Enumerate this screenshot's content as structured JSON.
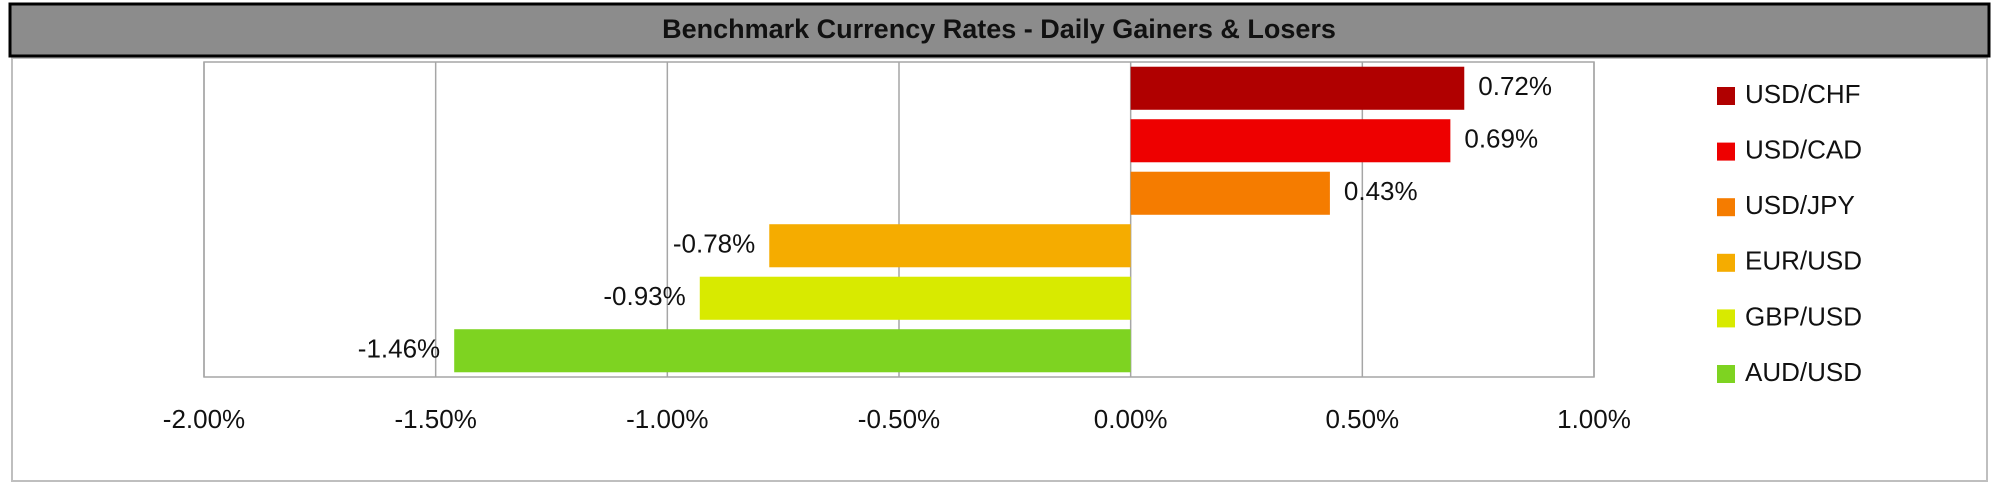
{
  "chart_data": {
    "type": "bar",
    "orientation": "horizontal",
    "title": "Benchmark Currency Rates - Daily Gainers & Losers",
    "categories": [
      "USD/CHF",
      "USD/CAD",
      "USD/JPY",
      "EUR/USD",
      "GBP/USD",
      "AUD/USD"
    ],
    "values": [
      0.72,
      0.69,
      0.43,
      -0.78,
      -0.93,
      -1.46
    ],
    "value_labels": [
      "0.72%",
      "0.69%",
      "0.43%",
      "-0.78%",
      "-0.93%",
      "-1.46%"
    ],
    "colors": [
      "#b00000",
      "#ee0000",
      "#f57c00",
      "#f5ac00",
      "#d8ea00",
      "#7ed321"
    ],
    "xlim": [
      -2,
      1
    ],
    "xticks": [
      {
        "value": -2,
        "label": "-2.00%"
      },
      {
        "value": -1.5,
        "label": "-1.50%"
      },
      {
        "value": -1,
        "label": "-1.00%"
      },
      {
        "value": -0.5,
        "label": "-0.50%"
      },
      {
        "value": 0,
        "label": "0.00%"
      },
      {
        "value": 0.5,
        "label": "0.50%"
      },
      {
        "value": 1,
        "label": "1.00%"
      }
    ],
    "grid": true,
    "legend": "right"
  }
}
